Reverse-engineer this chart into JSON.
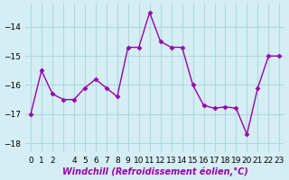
{
  "x": [
    0,
    1,
    2,
    3,
    4,
    5,
    6,
    7,
    8,
    9,
    10,
    11,
    12,
    13,
    14,
    15,
    16,
    17,
    18,
    19,
    20,
    21,
    22,
    23
  ],
  "y": [
    -17.0,
    -15.5,
    -16.3,
    -16.5,
    -16.5,
    -16.1,
    -15.8,
    -16.1,
    -16.4,
    -14.7,
    -14.7,
    -13.5,
    -14.5,
    -14.7,
    -14.7,
    -16.0,
    -16.7,
    -16.8,
    -16.75,
    -16.8,
    -17.7,
    -16.1,
    -15.0,
    -15.0
  ],
  "xlabel": "Windchill (Refroidissement éolien,°C)",
  "bg_color": "#d4eef4",
  "grid_color": "#b0d8e0",
  "line_color": "#9900aa",
  "marker_color": "#9900aa",
  "ylim": [
    -18.3,
    -13.2
  ],
  "xlim": [
    -0.5,
    23.5
  ],
  "yticks": [
    -18,
    -17,
    -16,
    -15,
    -14
  ],
  "xtick_labels": [
    "0",
    "1",
    "2",
    "",
    "4",
    "5",
    "6",
    "7",
    "8",
    "9",
    "10",
    "11",
    "12",
    "13",
    "14",
    "15",
    "16",
    "17",
    "18",
    "19",
    "20",
    "21",
    "22",
    "23"
  ],
  "axis_fontsize": 7,
  "tick_fontsize": 6.5
}
